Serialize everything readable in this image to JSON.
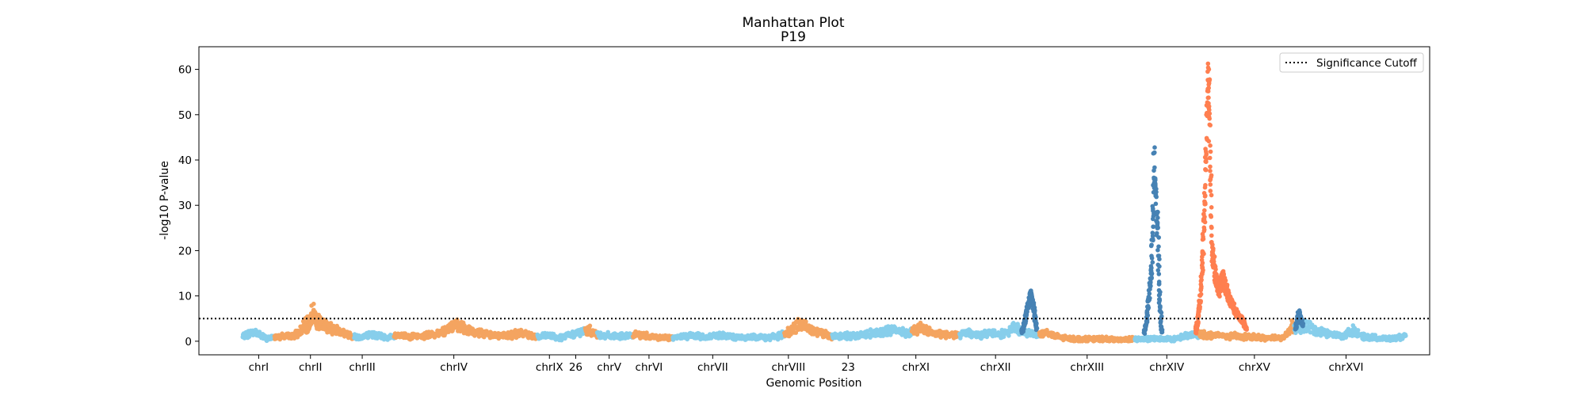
{
  "chart_data": {
    "type": "scatter",
    "title": "Manhattan Plot",
    "subtitle": "P19",
    "xlabel": "Genomic Position",
    "ylabel": "-log10 P-value",
    "ylim": [
      -3,
      65
    ],
    "yticks": [
      0,
      10,
      20,
      30,
      40,
      50,
      60
    ],
    "grid": false,
    "legend": {
      "placement": "top-right",
      "entries": [
        {
          "label": "Significance Cutoff",
          "style": "dotted",
          "color": "#000000"
        }
      ]
    },
    "significance_cutoff": 5,
    "colors": {
      "sky": "#87CEEB",
      "sandy": "#F4A460",
      "coral": "#FF7F50",
      "steel": "#4682B4"
    },
    "xlim": [
      -55,
      1490
    ],
    "chromosomes": [
      {
        "label": "chrI",
        "start": 0,
        "end": 40,
        "color": "sky"
      },
      {
        "label": "chrII",
        "start": 40,
        "end": 140,
        "color": "sandy"
      },
      {
        "label": "chrIII",
        "start": 140,
        "end": 190,
        "color": "sky"
      },
      {
        "label": "chrIV",
        "start": 190,
        "end": 370,
        "color": "sandy"
      },
      {
        "label": "chrIX",
        "start": 370,
        "end": 430,
        "color": "sky"
      },
      {
        "label": "26",
        "start": 430,
        "end": 445,
        "color": "sandy"
      },
      {
        "label": "chrV",
        "start": 445,
        "end": 490,
        "color": "sky"
      },
      {
        "label": "chrVI",
        "start": 490,
        "end": 540,
        "color": "sandy"
      },
      {
        "label": "chrVII",
        "start": 540,
        "end": 680,
        "color": "sky"
      },
      {
        "label": "chrVIII",
        "start": 680,
        "end": 740,
        "color": "sandy"
      },
      {
        "label": "23",
        "start": 740,
        "end": 840,
        "color": "sky"
      },
      {
        "label": "chrXI",
        "start": 840,
        "end": 900,
        "color": "sandy"
      },
      {
        "label": "chrXII",
        "start": 900,
        "end": 1000,
        "color": "sky"
      },
      {
        "label": "chrXIII",
        "start": 1000,
        "end": 1120,
        "color": "sandy"
      },
      {
        "label": "chrXIV",
        "start": 1120,
        "end": 1200,
        "color": "sky"
      },
      {
        "label": "chrXV",
        "start": 1200,
        "end": 1320,
        "color": "sandy"
      },
      {
        "label": "chrXVI",
        "start": 1320,
        "end": 1460,
        "color": "sky"
      }
    ],
    "xticks": [
      {
        "label": "chrI",
        "x": 20
      },
      {
        "label": "chrII",
        "x": 85
      },
      {
        "label": "chrIII",
        "x": 150
      },
      {
        "label": "chrIV",
        "x": 265
      },
      {
        "label": "chrIX",
        "x": 385
      },
      {
        "label": "26",
        "x": 418
      },
      {
        "label": "chrV",
        "x": 460
      },
      {
        "label": "chrVI",
        "x": 510
      },
      {
        "label": "chrVII",
        "x": 590
      },
      {
        "label": "chrVIII",
        "x": 685
      },
      {
        "label": "23",
        "x": 760
      },
      {
        "label": "chrXI",
        "x": 845
      },
      {
        "label": "chrXII",
        "x": 945
      },
      {
        "label": "chrXIII",
        "x": 1060
      },
      {
        "label": "chrXIV",
        "x": 1160
      },
      {
        "label": "chrXV",
        "x": 1270
      },
      {
        "label": "chrXVI",
        "x": 1385
      }
    ],
    "background_profile": [
      [
        0,
        1.0
      ],
      [
        15,
        2.2
      ],
      [
        30,
        0.5
      ],
      [
        45,
        1.2
      ],
      [
        60,
        1.0
      ],
      [
        70,
        1.8
      ],
      [
        80,
        3.8
      ],
      [
        88,
        6.5
      ],
      [
        95,
        4.2
      ],
      [
        110,
        3.0
      ],
      [
        125,
        2.0
      ],
      [
        140,
        1.0
      ],
      [
        150,
        1.0
      ],
      [
        165,
        1.5
      ],
      [
        180,
        0.8
      ],
      [
        200,
        1.2
      ],
      [
        220,
        1.0
      ],
      [
        240,
        1.5
      ],
      [
        255,
        2.5
      ],
      [
        265,
        3.5
      ],
      [
        278,
        2.8
      ],
      [
        290,
        2.0
      ],
      [
        310,
        1.5
      ],
      [
        330,
        1.2
      ],
      [
        350,
        1.8
      ],
      [
        370,
        1.0
      ],
      [
        385,
        1.2
      ],
      [
        400,
        0.8
      ],
      [
        420,
        1.8
      ],
      [
        435,
        2.5
      ],
      [
        445,
        1.5
      ],
      [
        460,
        1.2
      ],
      [
        480,
        1.0
      ],
      [
        500,
        1.5
      ],
      [
        520,
        0.8
      ],
      [
        540,
        0.8
      ],
      [
        560,
        1.2
      ],
      [
        580,
        1.0
      ],
      [
        600,
        1.2
      ],
      [
        620,
        0.8
      ],
      [
        640,
        1.0
      ],
      [
        660,
        0.8
      ],
      [
        675,
        1.2
      ],
      [
        690,
        2.5
      ],
      [
        700,
        3.8
      ],
      [
        712,
        2.8
      ],
      [
        725,
        2.0
      ],
      [
        740,
        1.0
      ],
      [
        760,
        1.2
      ],
      [
        780,
        1.5
      ],
      [
        800,
        2.0
      ],
      [
        820,
        2.5
      ],
      [
        835,
        1.8
      ],
      [
        850,
        3.0
      ],
      [
        860,
        2.2
      ],
      [
        875,
        1.5
      ],
      [
        900,
        1.5
      ],
      [
        910,
        2.0
      ],
      [
        925,
        1.2
      ],
      [
        938,
        2.0
      ],
      [
        950,
        1.5
      ],
      [
        960,
        2.0
      ],
      [
        968,
        3.0
      ],
      [
        980,
        2.0
      ],
      [
        1000,
        1.5
      ],
      [
        1010,
        2.0
      ],
      [
        1020,
        1.0
      ],
      [
        1040,
        0.5
      ],
      [
        1060,
        0.5
      ],
      [
        1080,
        0.5
      ],
      [
        1100,
        0.3
      ],
      [
        1120,
        0.5
      ],
      [
        1150,
        0.5
      ],
      [
        1170,
        0.5
      ],
      [
        1180,
        1.0
      ],
      [
        1195,
        1.5
      ],
      [
        1260,
        1.0
      ],
      [
        1280,
        0.8
      ],
      [
        1300,
        0.8
      ],
      [
        1310,
        1.2
      ],
      [
        1318,
        3.5
      ],
      [
        1325,
        2.5
      ],
      [
        1335,
        3.5
      ],
      [
        1345,
        2.5
      ],
      [
        1360,
        1.8
      ],
      [
        1380,
        1.0
      ],
      [
        1395,
        2.5
      ],
      [
        1405,
        1.0
      ],
      [
        1420,
        0.8
      ],
      [
        1440,
        0.5
      ],
      [
        1460,
        1.0
      ]
    ],
    "peaks": [
      {
        "name": "chrII-peak",
        "color": "sandy",
        "points": [
          [
            80,
            2
          ],
          [
            84,
            4
          ],
          [
            87,
            5.5
          ],
          [
            89,
            6.8
          ],
          [
            91,
            6
          ],
          [
            94,
            5
          ],
          [
            98,
            4
          ],
          [
            104,
            3
          ]
        ]
      },
      {
        "name": "chrXII-peak",
        "color": "steel",
        "points": [
          [
            978,
            2
          ],
          [
            981,
            4
          ],
          [
            983,
            6
          ],
          [
            985,
            8
          ],
          [
            987,
            9.5
          ],
          [
            989,
            11
          ],
          [
            991,
            10
          ],
          [
            993,
            8
          ],
          [
            995,
            5
          ],
          [
            997,
            3
          ]
        ]
      },
      {
        "name": "chrXIV-peak",
        "color": "steel",
        "points": [
          [
            1132,
            2
          ],
          [
            1135,
            5
          ],
          [
            1137,
            9
          ],
          [
            1139,
            14
          ],
          [
            1141,
            18
          ],
          [
            1142,
            25
          ],
          [
            1143,
            33
          ],
          [
            1144,
            40
          ],
          [
            1145,
            42.5
          ],
          [
            1146,
            36
          ],
          [
            1147,
            30
          ],
          [
            1148,
            28
          ],
          [
            1149,
            25
          ],
          [
            1150,
            16
          ],
          [
            1151,
            10
          ],
          [
            1152,
            8
          ],
          [
            1153,
            4
          ],
          [
            1154,
            2
          ]
        ]
      },
      {
        "name": "chrXV-peak",
        "color": "coral",
        "points": [
          [
            1196,
            2
          ],
          [
            1199,
            5
          ],
          [
            1202,
            10
          ],
          [
            1205,
            20
          ],
          [
            1207,
            30
          ],
          [
            1209,
            40
          ],
          [
            1210,
            50
          ],
          [
            1211,
            58
          ],
          [
            1212,
            61.5
          ],
          [
            1213,
            58
          ],
          [
            1214,
            50
          ],
          [
            1215,
            40
          ],
          [
            1216,
            30
          ],
          [
            1217,
            22
          ],
          [
            1219,
            18
          ],
          [
            1222,
            14
          ],
          [
            1226,
            12
          ],
          [
            1230,
            15
          ],
          [
            1234,
            13
          ],
          [
            1238,
            10
          ],
          [
            1242,
            9
          ],
          [
            1246,
            7
          ],
          [
            1250,
            6
          ],
          [
            1255,
            5
          ],
          [
            1260,
            3
          ]
        ]
      },
      {
        "name": "chrXVI-peak",
        "color": "steel",
        "points": [
          [
            1322,
            3
          ],
          [
            1324,
            5
          ],
          [
            1326,
            7
          ],
          [
            1328,
            5.5
          ],
          [
            1331,
            3.5
          ]
        ]
      }
    ]
  }
}
